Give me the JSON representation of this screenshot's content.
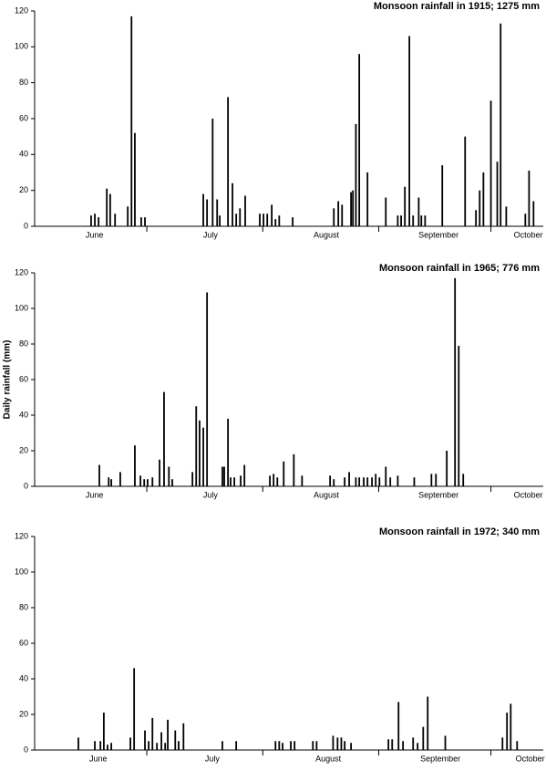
{
  "chart_data": [
    {
      "type": "bar",
      "title": "Monsoon rainfall in 1915; 1275 mm",
      "color": "#000000",
      "x": [
        15.1,
        16.1,
        17.1,
        19.3,
        20.2,
        21.5,
        24.9,
        25.9,
        26.8,
        28.5,
        29.5,
        45.1,
        46.1,
        47.6,
        48.8,
        49.5,
        51.7,
        52.9,
        53.9,
        54.9,
        56.3,
        60.2,
        61.2,
        62.2,
        63.4,
        64.4,
        65.4,
        69.0,
        80.0,
        81.2,
        82.2,
        84.6,
        85.1,
        85.9,
        86.8,
        89.0,
        93.9,
        97.1,
        98.0,
        99.0,
        100.2,
        101.2,
        102.7,
        103.4,
        104.4,
        109.0,
        115.1,
        118.0,
        119.0,
        120.0,
        122.0,
        123.7,
        124.6,
        126.1,
        131.2,
        132.2,
        133.4
      ],
      "values": [
        6,
        7,
        5,
        21,
        18,
        7,
        11,
        117,
        52,
        5,
        5,
        18,
        15,
        60,
        15,
        6,
        72,
        24,
        7,
        10,
        17,
        7,
        7,
        7,
        12,
        4,
        6,
        5,
        10,
        14,
        12,
        19,
        20,
        57,
        96,
        30,
        16,
        6,
        6,
        22,
        106,
        6,
        16,
        6,
        6,
        34,
        50,
        9,
        20,
        30,
        70,
        36,
        113,
        11,
        7,
        31,
        14
      ],
      "xlim": [
        0,
        136
      ],
      "ylim": [
        0,
        120
      ],
      "yticks": [
        0,
        20,
        40,
        60,
        80,
        100,
        120
      ],
      "xticks": [
        {
          "value": 16,
          "label": "June"
        },
        {
          "value": 47,
          "label": "July"
        },
        {
          "value": 78,
          "label": "August"
        },
        {
          "value": 108,
          "label": "September"
        },
        {
          "value": 132,
          "label": "October"
        }
      ],
      "month_boundaries": [
        30,
        61,
        92,
        122
      ]
    },
    {
      "type": "bar",
      "title": "Monsoon rainfall in 1965; 776 mm",
      "color": "#000000",
      "y_label": "Daily rainfall (mm)",
      "x": [
        17.3,
        19.8,
        20.5,
        22.9,
        26.8,
        28.3,
        29.3,
        30.2,
        31.5,
        33.4,
        34.6,
        35.9,
        36.8,
        42.2,
        43.2,
        44.1,
        45.1,
        46.1,
        50.2,
        50.7,
        51.7,
        52.4,
        53.4,
        55.1,
        56.1,
        62.9,
        63.9,
        64.9,
        66.6,
        69.3,
        71.5,
        79.0,
        80.0,
        82.9,
        84.1,
        85.9,
        86.8,
        88.0,
        89.0,
        90.2,
        91.2,
        92.2,
        93.9,
        95.1,
        97.1,
        101.5,
        106.1,
        107.3,
        110.2,
        112.4,
        113.4,
        114.6
      ],
      "values": [
        12,
        5,
        4,
        8,
        23,
        6,
        4,
        4,
        5,
        15,
        53,
        11,
        4,
        8,
        45,
        37,
        33,
        109,
        11,
        11,
        38,
        5,
        5,
        6,
        12,
        6,
        7,
        5,
        14,
        18,
        6,
        6,
        4,
        5,
        8,
        5,
        5,
        5,
        5,
        5,
        7,
        5,
        11,
        5,
        6,
        5,
        7,
        7,
        20,
        117,
        79,
        7
      ],
      "xlim": [
        0,
        136
      ],
      "ylim": [
        0,
        120
      ],
      "yticks": [
        0,
        20,
        40,
        60,
        80,
        100,
        120
      ],
      "xticks": [
        {
          "value": 16,
          "label": "June"
        },
        {
          "value": 47,
          "label": "July"
        },
        {
          "value": 78,
          "label": "August"
        },
        {
          "value": 108,
          "label": "September"
        },
        {
          "value": 132,
          "label": "October"
        }
      ],
      "month_boundaries": [
        30,
        61,
        92,
        122
      ]
    },
    {
      "type": "bar",
      "title": "Monsoon rainfall in 1972; 340 mm",
      "color": "#000000",
      "x": [
        11.7,
        16.1,
        17.6,
        18.5,
        19.5,
        20.5,
        25.6,
        26.6,
        29.5,
        30.5,
        31.5,
        32.7,
        33.9,
        34.9,
        35.6,
        37.6,
        38.5,
        39.8,
        50.2,
        53.9,
        64.4,
        65.4,
        66.3,
        68.5,
        69.5,
        74.4,
        75.4,
        79.8,
        81.0,
        82.0,
        82.9,
        84.6,
        94.6,
        95.6,
        97.3,
        98.5,
        101.2,
        102.4,
        103.9,
        105.1,
        109.8,
        125.1,
        126.3,
        127.3,
        129.0
      ],
      "values": [
        7,
        5,
        5,
        21,
        3,
        4,
        7,
        46,
        11,
        5,
        18,
        4,
        10,
        4,
        17,
        11,
        5,
        15,
        5,
        5,
        5,
        5,
        4,
        5,
        5,
        5,
        5,
        8,
        7,
        7,
        5,
        4,
        6,
        6,
        27,
        5,
        7,
        4,
        13,
        30,
        8,
        7,
        21,
        26,
        5
      ],
      "xlim": [
        0,
        136
      ],
      "ylim": [
        0,
        120
      ],
      "yticks": [
        0,
        20,
        40,
        60,
        80,
        100,
        120
      ],
      "xticks": [
        {
          "value": 17,
          "label": "June"
        },
        {
          "value": 47.5,
          "label": "July"
        },
        {
          "value": 78.5,
          "label": "August"
        },
        {
          "value": 108.5,
          "label": "September"
        },
        {
          "value": 132.5,
          "label": "October"
        }
      ],
      "month_boundaries": [
        30,
        61,
        92,
        122
      ]
    }
  ]
}
